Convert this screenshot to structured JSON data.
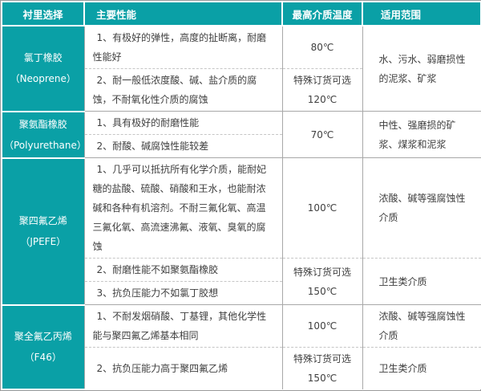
{
  "table": {
    "title_hint": "衬里材料选择表",
    "accent_color": "#0aa0a6",
    "headers": [
      "衬里选择",
      "主要性能",
      "最高介质温度",
      "适用范围"
    ],
    "groups": [
      {
        "name": "氯丁橡胶",
        "name_en": "（Neoprene）",
        "application": "水、污水、弱磨损性的泥浆、矿浆",
        "rows": [
          {
            "perf": "1、有极好的弹性，高度的扯断离，耐磨性能好",
            "temp": "80℃"
          },
          {
            "perf": "2、耐一般低浓度酸、碱、盐介质的腐蚀，不耐氧化性介质的腐蚀",
            "temp_note": "特殊订货可选",
            "temp": "120℃"
          }
        ]
      },
      {
        "name": "聚氨酯橡胶",
        "name_en": "（Polyurethane）",
        "temp": "70℃",
        "application": "中性、强磨损的矿浆、煤浆和泥浆",
        "rows": [
          {
            "perf": "1、具有极好的耐磨性能"
          },
          {
            "perf": "2、耐酸、碱腐蚀性能较差"
          }
        ]
      },
      {
        "name": "聚四氟乙烯",
        "name_en": "（JPEFE）",
        "rows": [
          {
            "perf": "1、几乎可以抵抗所有化学介质，能耐妃糖的盐酸、硫酸、硝酸和王水，也能耐浓碱和各种有机溶剂。不耐三氟化氧、高温三氟化氧、高流速沸氟、液氧、臭氧的腐蚀",
            "temp": "100℃",
            "application": "浓酸、碱等强腐蚀性介质"
          },
          {
            "perf": "2、耐磨性能不如聚氨酯橡胶",
            "temp_note": "特殊订货可选",
            "temp": "150℃",
            "application": "卫生类介质"
          },
          {
            "perf": "3、抗负压能力不如氯丁胶想"
          }
        ]
      },
      {
        "name": "聚全氟乙丙烯",
        "name_en": "（F46）",
        "rows": [
          {
            "perf": "1、不耐发烟硝酸、丁基锂，其他化学性能与聚四氟乙烯基本相同",
            "temp": "100℃",
            "application": "浓酸、碱等强腐蚀性介质"
          },
          {
            "perf": "2、抗负压能力高于聚四氟乙烯",
            "temp_note": "特殊订货可选",
            "temp": "150℃",
            "application": "卫生类介质"
          }
        ]
      }
    ]
  }
}
